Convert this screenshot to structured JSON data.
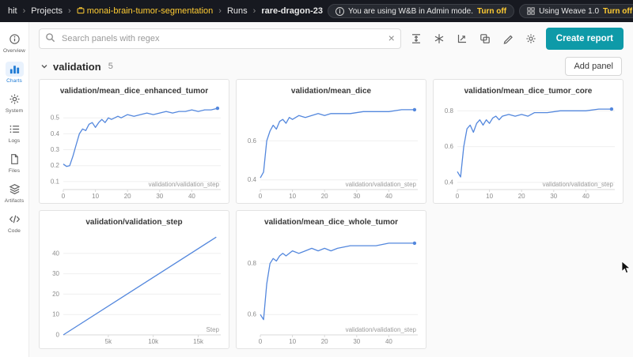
{
  "topbar": {
    "user": "hit",
    "breadcrumb": {
      "projects": "Projects",
      "project": "monai-brain-tumor-segmentation",
      "runs": "Runs",
      "run": "rare-dragon-23",
      "separator": "›"
    },
    "admin_banner": {
      "text": "You are using W&B in Admin mode.",
      "action": "Turn off"
    },
    "weave_banner": {
      "text": "Using Weave 1.0",
      "action": "Turn off"
    }
  },
  "sidebar": {
    "active": "Charts",
    "items": [
      {
        "label": "Overview"
      },
      {
        "label": "Charts"
      },
      {
        "label": "System"
      },
      {
        "label": "Logs"
      },
      {
        "label": "Files"
      },
      {
        "label": "Artifacts"
      },
      {
        "label": "Code"
      }
    ]
  },
  "toolbar": {
    "search_placeholder": "Search panels with regex",
    "clear": "×",
    "create_report_label": "Create report"
  },
  "section": {
    "name": "validation",
    "count": "5",
    "add_panel_label": "Add panel"
  },
  "colors": {
    "accent_teal": "#0e9aa8",
    "line_blue": "#5387DD",
    "link_gold": "#ffcc33",
    "active_blue": "#1f7bd4"
  },
  "chart_data": [
    {
      "type": "line",
      "title": "validation/mean_dice_enhanced_tumor",
      "xlabel": "validation/validation_step",
      "xlim": [
        0,
        49
      ],
      "ylim": [
        0.05,
        0.6
      ],
      "xticks": [
        0,
        10,
        20,
        30,
        40
      ],
      "xtick_labels": [
        "0",
        "10",
        "20",
        "30",
        "40"
      ],
      "yticks": [
        0.1,
        0.2,
        0.3,
        0.4,
        0.5
      ],
      "ytick_labels": [
        "0.1",
        "0.2",
        "0.3",
        "0.4",
        "0.5"
      ],
      "x": [
        0,
        1,
        2,
        3,
        4,
        5,
        6,
        7,
        8,
        9,
        10,
        11,
        12,
        13,
        14,
        15,
        16,
        17,
        18,
        20,
        22,
        24,
        26,
        28,
        30,
        32,
        34,
        36,
        38,
        40,
        42,
        44,
        46,
        48
      ],
      "y": [
        0.21,
        0.195,
        0.2,
        0.26,
        0.33,
        0.4,
        0.43,
        0.42,
        0.46,
        0.47,
        0.44,
        0.47,
        0.49,
        0.47,
        0.5,
        0.49,
        0.5,
        0.51,
        0.5,
        0.52,
        0.51,
        0.52,
        0.53,
        0.52,
        0.53,
        0.54,
        0.53,
        0.54,
        0.54,
        0.55,
        0.54,
        0.55,
        0.55,
        0.56
      ],
      "end_dot": true
    },
    {
      "type": "line",
      "title": "validation/mean_dice",
      "xlabel": "validation/validation_step",
      "xlim": [
        0,
        49
      ],
      "ylim": [
        0.35,
        0.8
      ],
      "xticks": [
        0,
        10,
        20,
        30,
        40
      ],
      "xtick_labels": [
        "0",
        "10",
        "20",
        "30",
        "40"
      ],
      "yticks": [
        0.4,
        0.6
      ],
      "ytick_labels": [
        "0.4",
        "0.6"
      ],
      "x": [
        0,
        1,
        2,
        3,
        4,
        5,
        6,
        7,
        8,
        9,
        10,
        12,
        14,
        16,
        18,
        20,
        22,
        24,
        28,
        32,
        36,
        40,
        44,
        48
      ],
      "y": [
        0.41,
        0.44,
        0.6,
        0.65,
        0.68,
        0.66,
        0.7,
        0.71,
        0.69,
        0.72,
        0.71,
        0.73,
        0.72,
        0.73,
        0.74,
        0.73,
        0.74,
        0.74,
        0.74,
        0.75,
        0.75,
        0.75,
        0.76,
        0.76
      ],
      "end_dot": true
    },
    {
      "type": "line",
      "title": "validation/mean_dice_tumor_core",
      "xlabel": "validation/validation_step",
      "xlim": [
        0,
        49
      ],
      "ylim": [
        0.36,
        0.85
      ],
      "xticks": [
        0,
        10,
        20,
        30,
        40
      ],
      "xtick_labels": [
        "0",
        "10",
        "20",
        "30",
        "40"
      ],
      "yticks": [
        0.4,
        0.6,
        0.8
      ],
      "ytick_labels": [
        "0.4",
        "0.6",
        "0.8"
      ],
      "x": [
        0,
        1,
        2,
        3,
        4,
        5,
        6,
        7,
        8,
        9,
        10,
        11,
        12,
        13,
        14,
        16,
        18,
        20,
        22,
        24,
        28,
        32,
        36,
        40,
        44,
        48
      ],
      "y": [
        0.46,
        0.43,
        0.6,
        0.7,
        0.72,
        0.68,
        0.73,
        0.75,
        0.72,
        0.75,
        0.73,
        0.76,
        0.77,
        0.75,
        0.77,
        0.78,
        0.77,
        0.78,
        0.77,
        0.79,
        0.79,
        0.8,
        0.8,
        0.8,
        0.81,
        0.81
      ],
      "end_dot": true
    },
    {
      "type": "line",
      "title": "validation/validation_step",
      "xlabel": "Step",
      "xlim": [
        0,
        17500
      ],
      "ylim": [
        0,
        50
      ],
      "xticks": [
        5000,
        10000,
        15000
      ],
      "xtick_labels": [
        "5k",
        "10k",
        "15k"
      ],
      "yticks": [
        0,
        10,
        20,
        30,
        40
      ],
      "ytick_labels": [
        "0",
        "10",
        "20",
        "30",
        "40"
      ],
      "x": [
        0,
        17000
      ],
      "y": [
        0,
        48
      ],
      "end_dot": false
    },
    {
      "type": "line",
      "title": "validation/mean_dice_whole_tumor",
      "xlabel": "validation/validation_step",
      "xlim": [
        0,
        49
      ],
      "ylim": [
        0.52,
        0.92
      ],
      "xticks": [
        0,
        10,
        20,
        30,
        40
      ],
      "xtick_labels": [
        "0",
        "10",
        "20",
        "30",
        "40"
      ],
      "yticks": [
        0.6,
        0.8
      ],
      "ytick_labels": [
        "0.6",
        "0.8"
      ],
      "x": [
        0,
        1,
        2,
        3,
        4,
        5,
        6,
        7,
        8,
        9,
        10,
        12,
        14,
        16,
        18,
        20,
        22,
        24,
        28,
        32,
        36,
        40,
        44,
        48
      ],
      "y": [
        0.6,
        0.58,
        0.72,
        0.8,
        0.82,
        0.81,
        0.83,
        0.84,
        0.83,
        0.84,
        0.85,
        0.84,
        0.85,
        0.86,
        0.85,
        0.86,
        0.85,
        0.86,
        0.87,
        0.87,
        0.87,
        0.88,
        0.88,
        0.88
      ],
      "end_dot": true
    }
  ]
}
